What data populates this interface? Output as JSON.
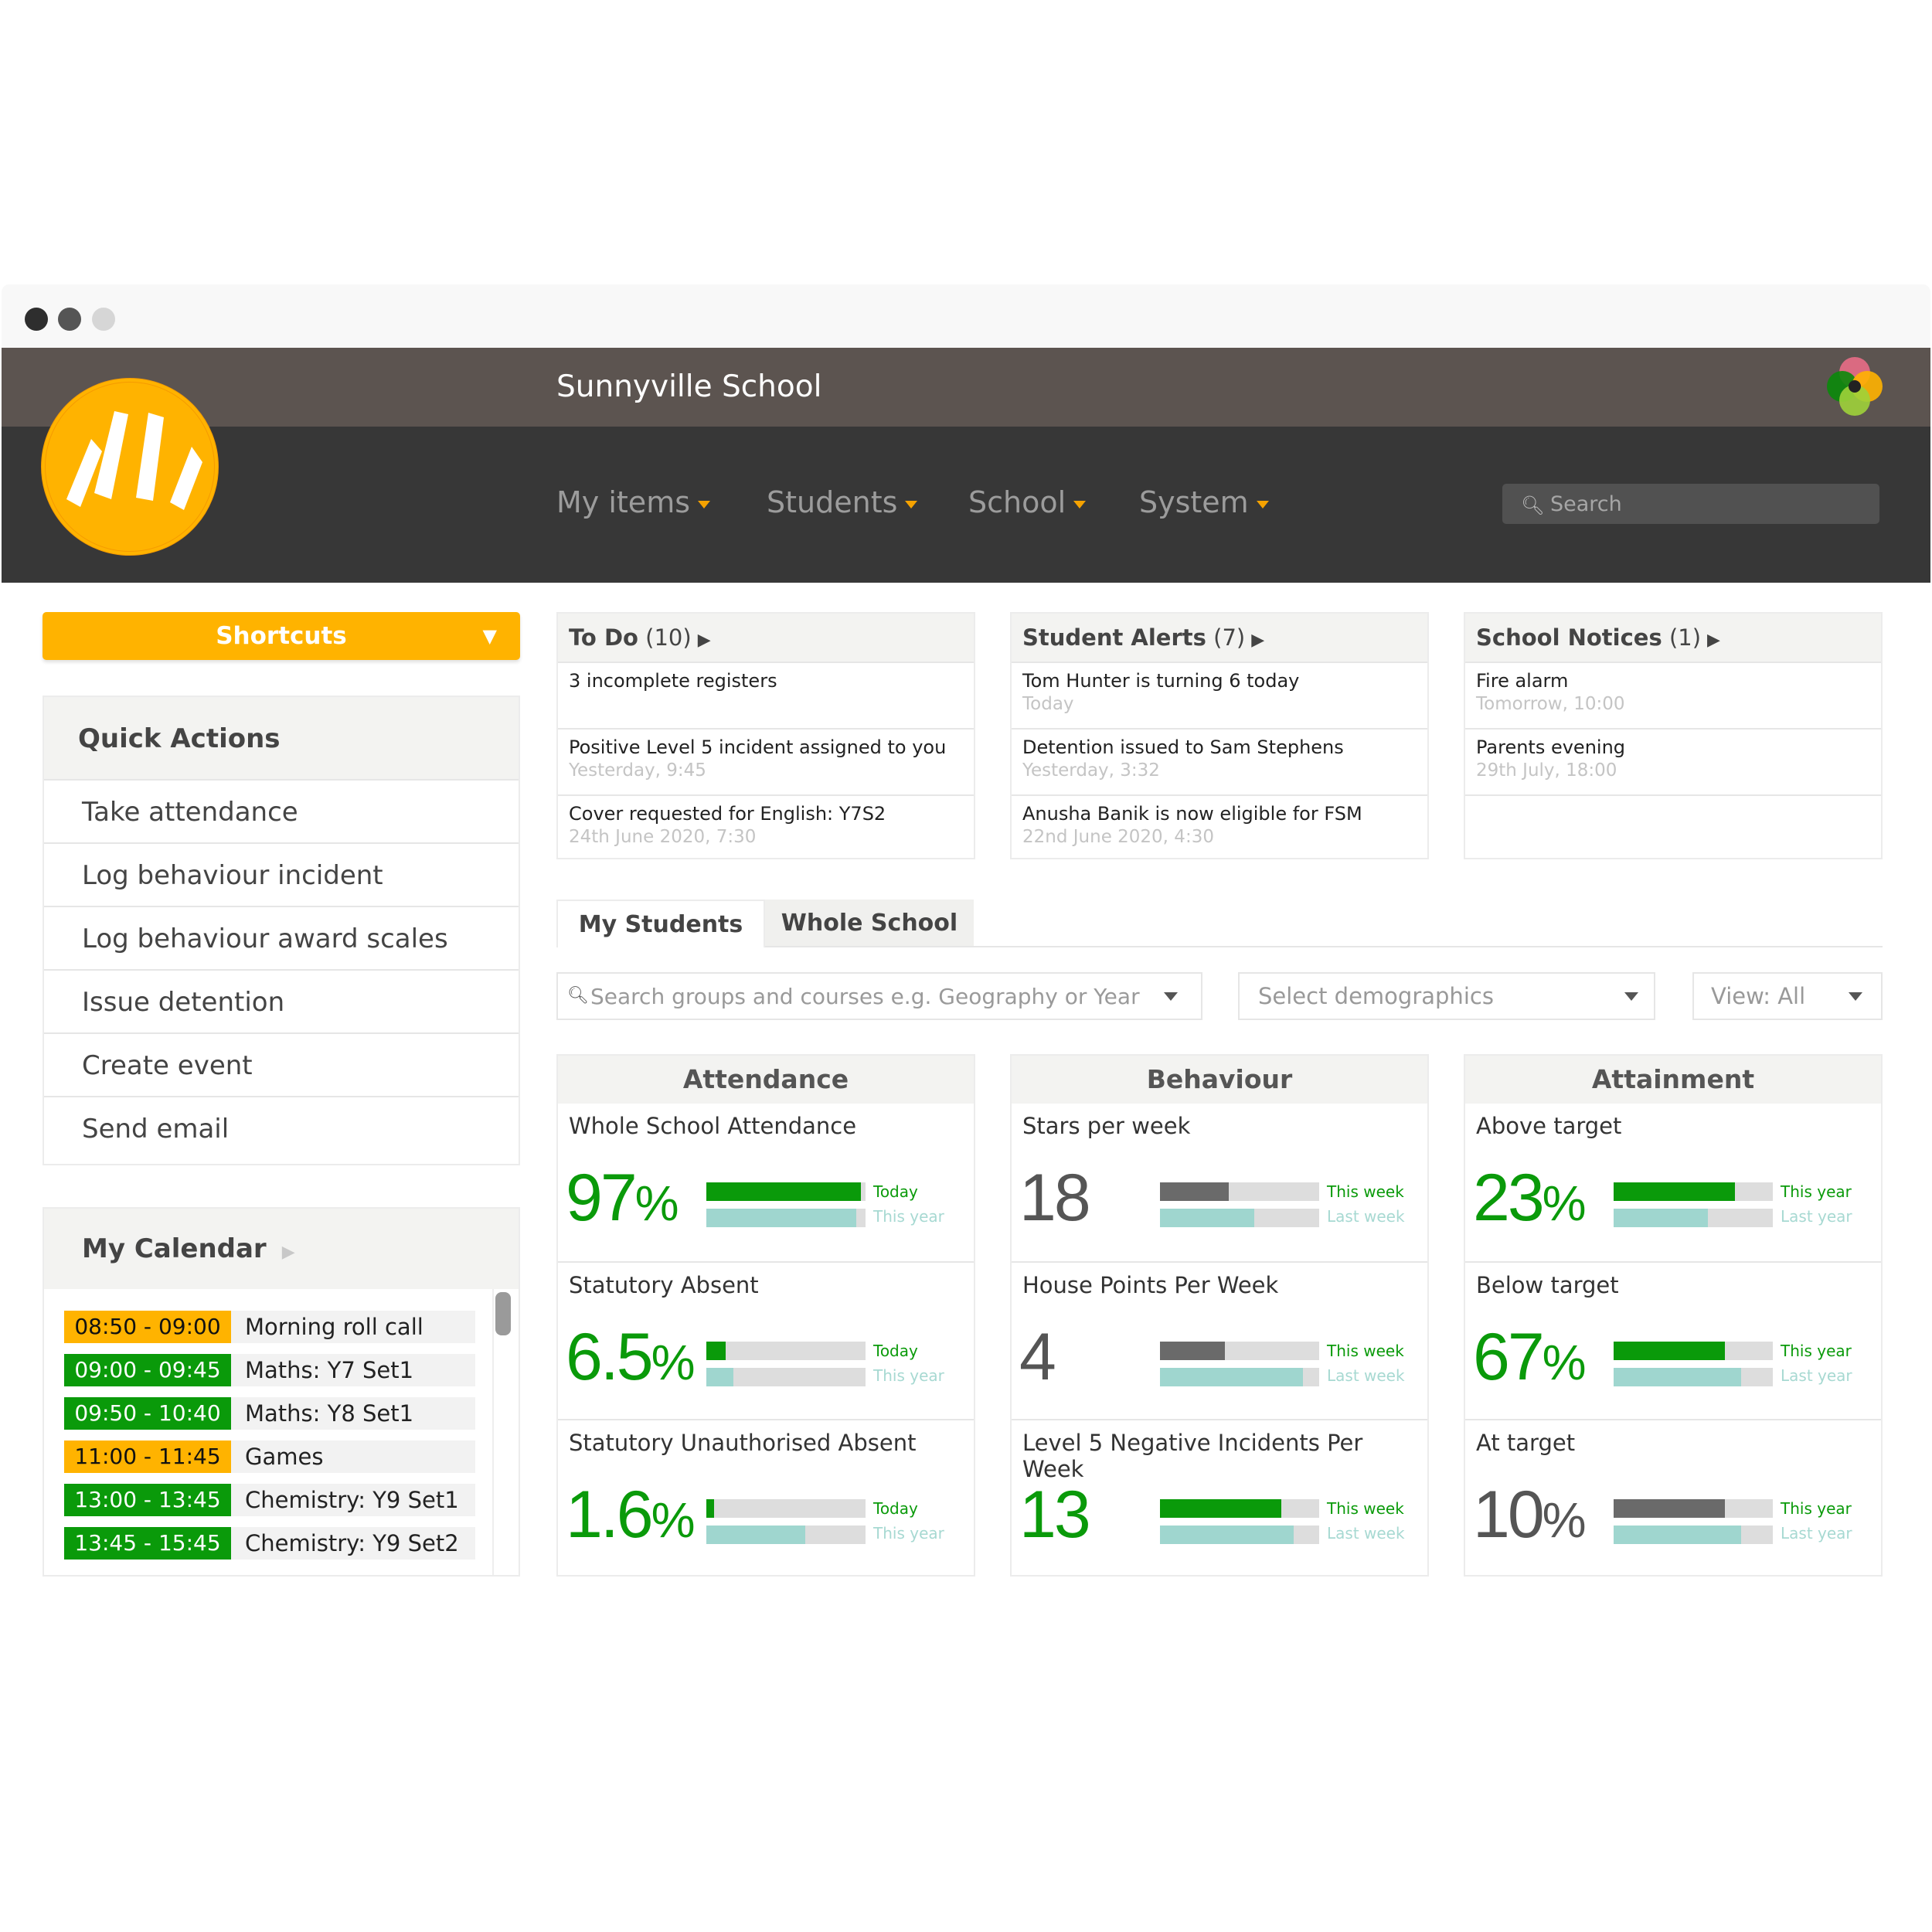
{
  "header": {
    "school_name": "Sunnyville School"
  },
  "nav": {
    "items": [
      {
        "label": "My items"
      },
      {
        "label": "Students"
      },
      {
        "label": "School"
      },
      {
        "label": "System"
      }
    ],
    "search_placeholder": "Search"
  },
  "shortcuts": {
    "label": "Shortcuts"
  },
  "quick_actions": {
    "title": "Quick Actions",
    "items": [
      {
        "label": "Take attendance"
      },
      {
        "label": "Log behaviour incident"
      },
      {
        "label": "Log behaviour award scales"
      },
      {
        "label": "Issue detention"
      },
      {
        "label": "Create event"
      },
      {
        "label": "Send email"
      }
    ]
  },
  "calendar": {
    "title": "My Calendar",
    "events": [
      {
        "time": "08:50 - 09:00",
        "label": "Morning roll call",
        "color": "#ffb300"
      },
      {
        "time": "09:00 - 09:45",
        "label": "Maths: Y7 Set1",
        "color": "#0a9a0a"
      },
      {
        "time": "09:50 - 10:40",
        "label": "Maths: Y8 Set1",
        "color": "#0a9a0a"
      },
      {
        "time": "11:00 - 11:45",
        "label": "Games",
        "color": "#ffb300"
      },
      {
        "time": "13:00 - 13:45",
        "label": "Chemistry: Y9 Set1",
        "color": "#0a9a0a"
      },
      {
        "time": "13:45 - 15:45",
        "label": "Chemistry: Y9 Set2",
        "color": "#0a9a0a"
      }
    ]
  },
  "panels": {
    "todo": {
      "title": "To Do",
      "count": "(10)",
      "rows": [
        {
          "text": "3 incomplete registers",
          "sub": ""
        },
        {
          "text": "Positive Level 5 incident assigned to you",
          "sub": "Yesterday, 9:45"
        },
        {
          "text": "Cover requested for English: Y7S2",
          "sub": "24th June 2020, 7:30"
        }
      ]
    },
    "alerts": {
      "title": "Student Alerts",
      "count": "(7)",
      "rows": [
        {
          "text": "Tom Hunter is turning 6 today",
          "sub": "Today"
        },
        {
          "text": "Detention issued to Sam Stephens",
          "sub": "Yesterday, 3:32"
        },
        {
          "text": "Anusha Banik is now eligible for FSM",
          "sub": "22nd June 2020, 4:30"
        }
      ]
    },
    "notices": {
      "title": "School Notices",
      "count": "(1)",
      "rows": [
        {
          "text": "Fire alarm",
          "sub": "Tomorrow, 10:00"
        },
        {
          "text": "Parents evening",
          "sub": "29th July, 18:00"
        },
        {
          "text": "",
          "sub": ""
        }
      ]
    }
  },
  "tabs": {
    "my_students": "My Students",
    "whole_school": "Whole School"
  },
  "filters": {
    "search_placeholder": "Search groups and courses e.g. Geography or Year 7",
    "demographics": "Select demographics",
    "view": "View: All"
  },
  "stats": {
    "attendance": {
      "title": "Attendance",
      "cards": [
        {
          "title": "Whole School Attendance",
          "value": "97",
          "unit": "%",
          "current_label": "Today",
          "compare_label": "This year",
          "current_fill": 0.97,
          "compare_fill": 0.94,
          "current_color": "#0a9a0a",
          "compare_color": "#9fd6cf",
          "value_color": "#0a9a0a"
        },
        {
          "title": "Statutory Absent",
          "value": "6.5",
          "unit": "%",
          "current_label": "Today",
          "compare_label": "This year",
          "current_fill": 0.12,
          "compare_fill": 0.17,
          "current_color": "#0a9a0a",
          "compare_color": "#9fd6cf",
          "value_color": "#0a9a0a"
        },
        {
          "title": "Statutory Unauthorised Absent",
          "value": "1.6",
          "unit": "%",
          "current_label": "Today",
          "compare_label": "This year",
          "current_fill": 0.05,
          "compare_fill": 0.62,
          "current_color": "#0a9a0a",
          "compare_color": "#9fd6cf",
          "value_color": "#0a9a0a"
        }
      ]
    },
    "behaviour": {
      "title": "Behaviour",
      "cards": [
        {
          "title": "Stars per week",
          "value": "18",
          "unit": "",
          "current_label": "This week",
          "compare_label": "Last week",
          "current_fill": 0.43,
          "compare_fill": 0.59,
          "current_color": "#6a6a6a",
          "compare_color": "#9fd6cf",
          "value_color": "#555555"
        },
        {
          "title": "House Points Per Week",
          "value": "4",
          "unit": "",
          "current_label": "This week",
          "compare_label": "Last week",
          "current_fill": 0.41,
          "compare_fill": 0.9,
          "current_color": "#6a6a6a",
          "compare_color": "#9fd6cf",
          "value_color": "#555555"
        },
        {
          "title": "Level 5 Negative Incidents Per Week",
          "value": "13",
          "unit": "",
          "current_label": "This week",
          "compare_label": "Last week",
          "current_fill": 0.76,
          "compare_fill": 0.84,
          "current_color": "#0a9a0a",
          "compare_color": "#9fd6cf",
          "value_color": "#0a9a0a"
        }
      ]
    },
    "attainment": {
      "title": "Attainment",
      "cards": [
        {
          "title": "Above target",
          "value": "23",
          "unit": "%",
          "current_label": "This year",
          "compare_label": "Last year",
          "current_fill": 0.76,
          "compare_fill": 0.59,
          "current_color": "#0a9a0a",
          "compare_color": "#9fd6cf",
          "value_color": "#0a9a0a"
        },
        {
          "title": "Below target",
          "value": "67",
          "unit": "%",
          "current_label": "This year",
          "compare_label": "Last year",
          "current_fill": 0.7,
          "compare_fill": 0.8,
          "current_color": "#0a9a0a",
          "compare_color": "#9fd6cf",
          "value_color": "#0a9a0a"
        },
        {
          "title": "At target",
          "value": "10",
          "unit": "%",
          "current_label": "This year",
          "compare_label": "Last year",
          "current_fill": 0.7,
          "compare_fill": 0.8,
          "current_color": "#6a6a6a",
          "compare_color": "#9fd6cf",
          "value_color": "#555555"
        }
      ]
    }
  }
}
